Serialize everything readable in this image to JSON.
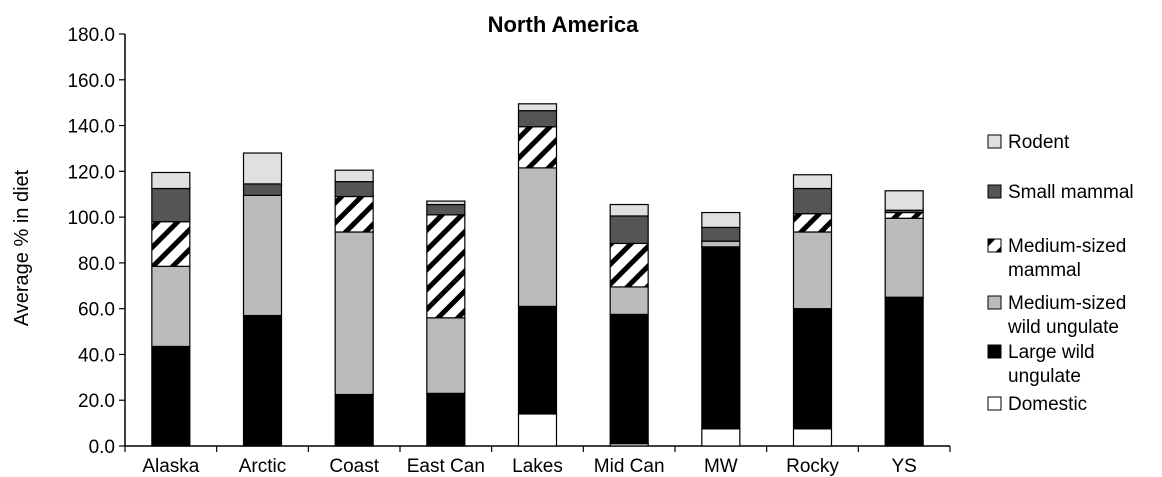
{
  "chart_data": {
    "type": "bar",
    "stacked": true,
    "title": "North America",
    "xlabel": "",
    "ylabel": "Average % in diet",
    "ylim": [
      0,
      180
    ],
    "yticks": [
      "0.0",
      "20.0",
      "40.0",
      "60.0",
      "80.0",
      "100.0",
      "120.0",
      "140.0",
      "160.0",
      "180.0"
    ],
    "categories": [
      "Alaska",
      "Arctic",
      "Coast",
      "East Can",
      "Lakes",
      "Mid Can",
      "MW",
      "Rocky",
      "YS"
    ],
    "series": [
      {
        "name": "Domestic",
        "legend_lines": [
          "Domestic"
        ],
        "fill": "#ffffff",
        "pattern": "none",
        "values": [
          0,
          0,
          0,
          0,
          14,
          1,
          7.5,
          7.5,
          0
        ]
      },
      {
        "name": "Large wild ungulate",
        "legend_lines": [
          "Large wild",
          "ungulate"
        ],
        "fill": "#000000",
        "pattern": "none",
        "values": [
          43.5,
          57,
          22.5,
          23,
          47,
          56.5,
          79.5,
          52.5,
          65
        ]
      },
      {
        "name": "Medium-sized wild ungulate",
        "legend_lines": [
          "Medium-sized",
          "wild ungulate"
        ],
        "fill": "#bbbbbb",
        "pattern": "none",
        "values": [
          35,
          52.5,
          71,
          33,
          60.5,
          12,
          2.5,
          33.5,
          34.5
        ]
      },
      {
        "name": "Medium-sized mammal",
        "legend_lines": [
          "Medium-sized",
          "mammal"
        ],
        "fill": "#ffffff",
        "pattern": "hatch",
        "values": [
          19.5,
          0,
          15.5,
          45,
          18,
          19,
          0,
          8,
          2.5
        ]
      },
      {
        "name": "Small mammal",
        "legend_lines": [
          "Small mammal"
        ],
        "fill": "#555555",
        "pattern": "none",
        "values": [
          14.5,
          5,
          6.5,
          4.5,
          7,
          12,
          6,
          11,
          1
        ]
      },
      {
        "name": "Rodent",
        "legend_lines": [
          "Rodent"
        ],
        "fill": "#e0e0e0",
        "pattern": "none",
        "values": [
          7,
          13.5,
          5,
          1.5,
          3,
          5,
          6.5,
          6,
          8.5
        ]
      }
    ],
    "legend_placement": "right",
    "legend_order": [
      "Rodent",
      "Small mammal",
      "Medium-sized mammal",
      "Medium-sized wild ungulate",
      "Large wild ungulate",
      "Domestic"
    ],
    "grid": false
  }
}
